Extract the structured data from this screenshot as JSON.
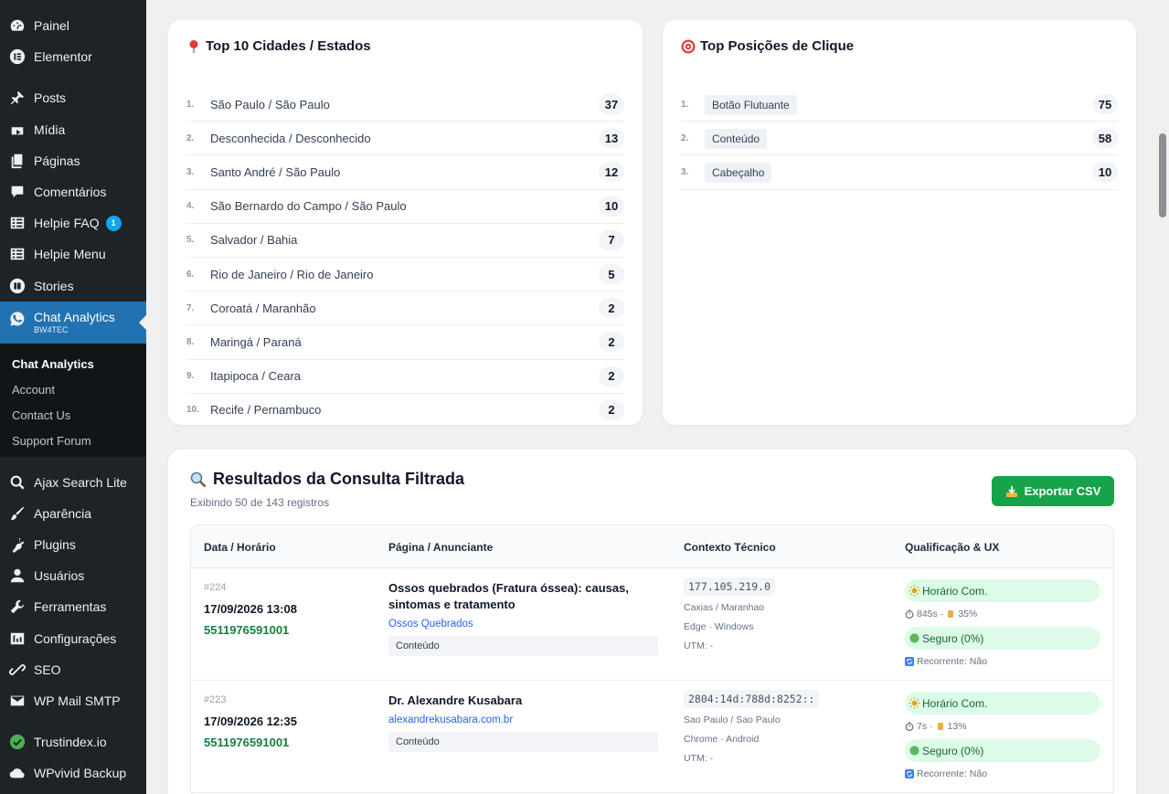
{
  "sidebar": {
    "items": [
      {
        "label": "Painel",
        "icon": "dashboard-icon"
      },
      {
        "label": "Elementor",
        "icon": "elementor-icon"
      },
      {
        "label": "Posts",
        "icon": "pin-icon"
      },
      {
        "label": "Mídia",
        "icon": "media-icon"
      },
      {
        "label": "Páginas",
        "icon": "pages-icon"
      },
      {
        "label": "Comentários",
        "icon": "comment-icon"
      },
      {
        "label": "Helpie FAQ",
        "icon": "faq-icon",
        "badge": "1"
      },
      {
        "label": "Helpie Menu",
        "icon": "menu-icon"
      },
      {
        "label": "Stories",
        "icon": "stories-icon"
      },
      {
        "label": "Chat Analytics",
        "sublabel": "BW4TEC",
        "icon": "whatsapp-icon"
      },
      {
        "label": "Ajax Search Lite",
        "icon": "search-icon"
      },
      {
        "label": "Aparência",
        "icon": "brush-icon"
      },
      {
        "label": "Plugins",
        "icon": "plugin-icon"
      },
      {
        "label": "Usuários",
        "icon": "user-icon"
      },
      {
        "label": "Ferramentas",
        "icon": "wrench-icon"
      },
      {
        "label": "Configurações",
        "icon": "settings-icon"
      },
      {
        "label": "SEO",
        "icon": "seo-icon"
      },
      {
        "label": "WP Mail SMTP",
        "icon": "mail-icon"
      },
      {
        "label": "Trustindex.io",
        "icon": "check-circle-icon"
      },
      {
        "label": "WPvivid Backup",
        "icon": "cloud-icon"
      }
    ],
    "submenu": [
      "Chat Analytics",
      "Account",
      "Contact Us",
      "Support Forum"
    ]
  },
  "cities": {
    "title": "Top 10 Cidades / Estados",
    "rows": [
      {
        "rank": "1.",
        "label": "São Paulo / São Paulo",
        "count": "37"
      },
      {
        "rank": "2.",
        "label": "Desconhecida / Desconhecido",
        "count": "13"
      },
      {
        "rank": "3.",
        "label": "Santo André / São Paulo",
        "count": "12"
      },
      {
        "rank": "4.",
        "label": "São Bernardo do Campo / São Paulo",
        "count": "10"
      },
      {
        "rank": "5.",
        "label": "Salvador / Bahia",
        "count": "7"
      },
      {
        "rank": "6.",
        "label": "Rio de Janeiro / Rio de Janeiro",
        "count": "5"
      },
      {
        "rank": "7.",
        "label": "Coroatá / Maranhão",
        "count": "2"
      },
      {
        "rank": "8.",
        "label": "Maringá / Paraná",
        "count": "2"
      },
      {
        "rank": "9.",
        "label": "Itapipoca / Ceara",
        "count": "2"
      },
      {
        "rank": "10.",
        "label": "Recife / Pernambuco",
        "count": "2"
      }
    ]
  },
  "positions": {
    "title": "Top Posições de Clique",
    "rows": [
      {
        "rank": "1.",
        "label": "Botão Flutuante",
        "count": "75"
      },
      {
        "rank": "2.",
        "label": "Conteúdo",
        "count": "58"
      },
      {
        "rank": "3.",
        "label": "Cabeçalho",
        "count": "10"
      }
    ]
  },
  "results": {
    "title": "Resultados da Consulta Filtrada",
    "subtitle": "Exibindo 50 de 143 registros",
    "export_label": "Exportar CSV",
    "headers": [
      "Data / Horário",
      "Página / Anunciante",
      "Contexto Técnico",
      "Qualificação & UX"
    ],
    "rows": [
      {
        "id": "#224",
        "date": "17/09/2026 13:08",
        "phone": "5511976591001",
        "page_title": "Ossos quebrados (Fratura óssea): causas, sintomas e tratamento",
        "page_link": "Ossos Quebrados",
        "position": "Conteúdo",
        "ip": "177.105.219.0",
        "location": "Caxias / Maranhao",
        "device": "Edge · Windows",
        "utm": "UTM: -",
        "hours": "Horário Com.",
        "time_metric": "845s",
        "scroll_metric": "35%",
        "safety": "Seguro (0%)",
        "recurring": "Recorrente: Não"
      },
      {
        "id": "#223",
        "date": "17/09/2026 12:35",
        "phone": "5511976591001",
        "page_title": "Dr. Alexandre Kusabara",
        "page_link": "alexandrekusabara.com.br",
        "position": "Conteúdo",
        "ip": "2804:14d:788d:8252::",
        "location": "Sao Paulo / Sao Paulo",
        "device": "Chrome · Android",
        "utm": "UTM: -",
        "hours": "Horário Com.",
        "time_metric": "7s",
        "scroll_metric": "13%",
        "safety": "Seguro (0%)",
        "recurring": "Recorrente: Não"
      }
    ]
  },
  "colors": {
    "sidebar": "#1d2327",
    "active": "#2271b1",
    "export": "#16a34a",
    "pill": "#dcfce7"
  }
}
